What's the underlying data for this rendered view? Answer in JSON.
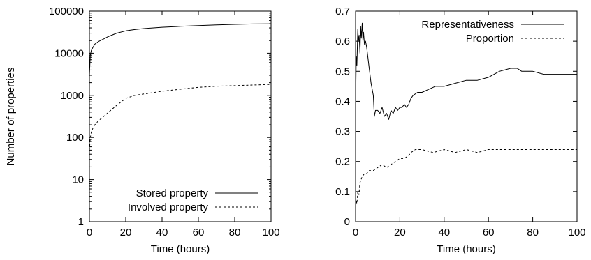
{
  "chart_data": [
    {
      "type": "line",
      "xlabel": "Time (hours)",
      "ylabel": "Number of properties",
      "xlim": [
        0,
        100
      ],
      "ylim": [
        1,
        100000
      ],
      "y_scale": "log",
      "x_ticks": [
        0,
        20,
        40,
        60,
        80,
        100
      ],
      "y_ticks": [
        1,
        10,
        100,
        1000,
        10000,
        100000
      ],
      "y_tick_labels": [
        "1",
        "10",
        "100",
        "1000",
        "10000",
        "100000"
      ],
      "grid": false,
      "legend_position": "bottom-right",
      "series": [
        {
          "name": "Stored property",
          "line_style": "solid",
          "x": [
            0,
            0.5,
            1,
            2,
            3,
            5,
            8,
            10,
            15,
            20,
            25,
            30,
            40,
            50,
            60,
            70,
            80,
            90,
            100
          ],
          "y": [
            3000,
            9000,
            11500,
            14000,
            16500,
            19000,
            22000,
            24500,
            30000,
            34000,
            36500,
            38500,
            41500,
            43500,
            45500,
            47000,
            48500,
            49500,
            50000
          ]
        },
        {
          "name": "Involved property",
          "line_style": "dashed",
          "x": [
            0,
            0.5,
            1,
            2,
            3,
            5,
            8,
            10,
            12,
            15,
            20,
            25,
            30,
            40,
            50,
            60,
            70,
            80,
            90,
            100
          ],
          "y": [
            50,
            100,
            130,
            170,
            200,
            250,
            320,
            380,
            450,
            580,
            850,
            1000,
            1080,
            1250,
            1400,
            1550,
            1650,
            1700,
            1760,
            1820
          ]
        }
      ]
    },
    {
      "type": "line",
      "xlabel": "Time (hours)",
      "ylabel": "",
      "xlim": [
        0,
        100
      ],
      "ylim": [
        0,
        0.7
      ],
      "x_ticks": [
        0,
        20,
        40,
        60,
        80,
        100
      ],
      "y_ticks": [
        0,
        0.1,
        0.2,
        0.3,
        0.4,
        0.5,
        0.6,
        0.7
      ],
      "y_tick_labels": [
        "0",
        "0.1",
        "0.2",
        "0.3",
        "0.4",
        "0.5",
        "0.6",
        "0.7"
      ],
      "grid": false,
      "legend_position": "top-right",
      "series": [
        {
          "name": "Representativeness",
          "line_style": "solid",
          "x": [
            0,
            0.3,
            0.6,
            1,
            1.3,
            1.6,
            2,
            2.3,
            2.6,
            3,
            3.3,
            3.6,
            4,
            4.5,
            5,
            6,
            7,
            8,
            8.5,
            9,
            10,
            11,
            12,
            13,
            14,
            15,
            16,
            17,
            18,
            19,
            20,
            21,
            22,
            23,
            24,
            25,
            26,
            28,
            30,
            33,
            36,
            40,
            45,
            50,
            55,
            60,
            65,
            70,
            73,
            75,
            80,
            85,
            90,
            95,
            100
          ],
          "y": [
            0.38,
            0.55,
            0.52,
            0.64,
            0.6,
            0.62,
            0.56,
            0.65,
            0.61,
            0.66,
            0.6,
            0.63,
            0.59,
            0.6,
            0.58,
            0.52,
            0.46,
            0.42,
            0.35,
            0.37,
            0.37,
            0.36,
            0.38,
            0.35,
            0.36,
            0.34,
            0.37,
            0.36,
            0.38,
            0.37,
            0.38,
            0.38,
            0.39,
            0.38,
            0.39,
            0.41,
            0.42,
            0.43,
            0.43,
            0.44,
            0.45,
            0.45,
            0.46,
            0.47,
            0.47,
            0.48,
            0.5,
            0.51,
            0.51,
            0.5,
            0.5,
            0.49,
            0.49,
            0.49,
            0.49
          ]
        },
        {
          "name": "Proportion",
          "line_style": "dashed",
          "x": [
            0,
            0.3,
            0.6,
            1,
            1.5,
            2,
            3,
            4,
            5,
            6,
            8,
            10,
            12,
            14,
            16,
            18,
            20,
            22,
            24,
            25,
            27,
            30,
            35,
            40,
            45,
            50,
            55,
            60,
            65,
            70,
            75,
            80,
            85,
            90,
            95,
            100
          ],
          "y": [
            0.03,
            0.07,
            0.06,
            0.1,
            0.09,
            0.13,
            0.15,
            0.16,
            0.16,
            0.17,
            0.17,
            0.18,
            0.19,
            0.18,
            0.19,
            0.2,
            0.21,
            0.21,
            0.22,
            0.23,
            0.24,
            0.24,
            0.23,
            0.24,
            0.23,
            0.24,
            0.23,
            0.24,
            0.24,
            0.24,
            0.24,
            0.24,
            0.24,
            0.24,
            0.24,
            0.24
          ]
        }
      ]
    }
  ]
}
